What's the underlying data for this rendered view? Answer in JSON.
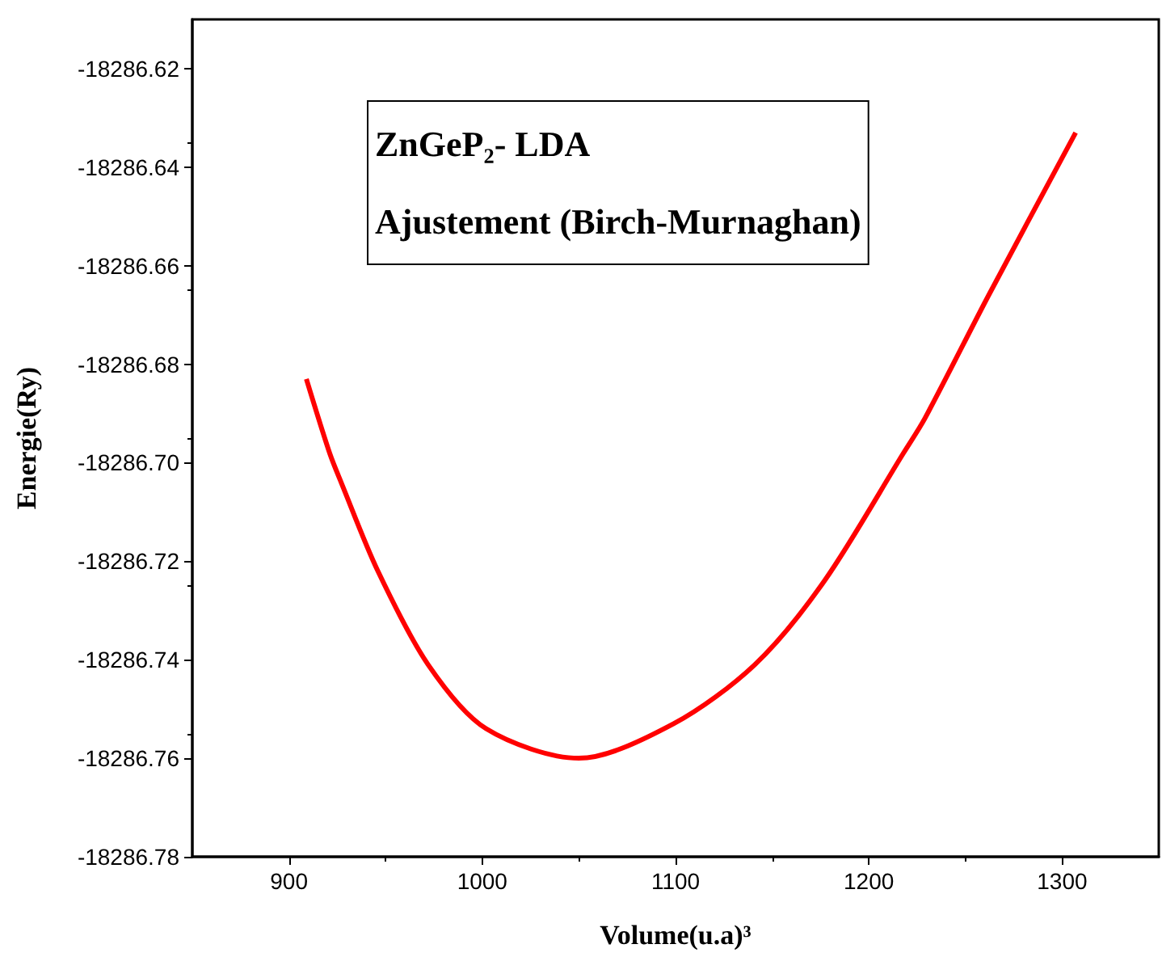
{
  "chart_data": {
    "type": "line",
    "xlabel": "Volume(u.a)³",
    "ylabel": "Energie(Ry)",
    "annotations": [
      "ZnGeP₂- LDA",
      "Ajustement (Birch-Murnaghan)"
    ],
    "x": [
      909,
      921,
      927,
      946,
      972,
      1002,
      1050,
      1099,
      1141,
      1177,
      1218,
      1229,
      1262,
      1307
    ],
    "series": [
      {
        "color": "#ff0000",
        "values": [
          -18286.683,
          -18286.698,
          -18286.704,
          -18286.722,
          -18286.741,
          -18286.754,
          -18286.76,
          -18286.753,
          -18286.741,
          -18286.724,
          -18286.698,
          -18286.691,
          -18286.666,
          -18286.633
        ]
      }
    ],
    "xlim": [
      850,
      1350
    ],
    "xticks": [
      900,
      1000,
      1100,
      1200,
      1300
    ],
    "ylim": [
      -18286.78,
      -18286.61
    ],
    "yticks": [
      {
        "value": -18286.78,
        "label": "-18286.78"
      },
      {
        "value": -18286.76,
        "label": "-18286.76"
      },
      {
        "value": -18286.74,
        "label": "-18286.74"
      },
      {
        "value": -18286.72,
        "label": "-18286.72"
      },
      {
        "value": -18286.7,
        "label": "-18286.70"
      },
      {
        "value": -18286.68,
        "label": "-18286.68"
      },
      {
        "value": -18286.66,
        "label": "-18286.66"
      },
      {
        "value": -18286.64,
        "label": "-18286.64"
      },
      {
        "value": -18286.62,
        "label": "-18286.62"
      }
    ],
    "line_style": "solid"
  }
}
